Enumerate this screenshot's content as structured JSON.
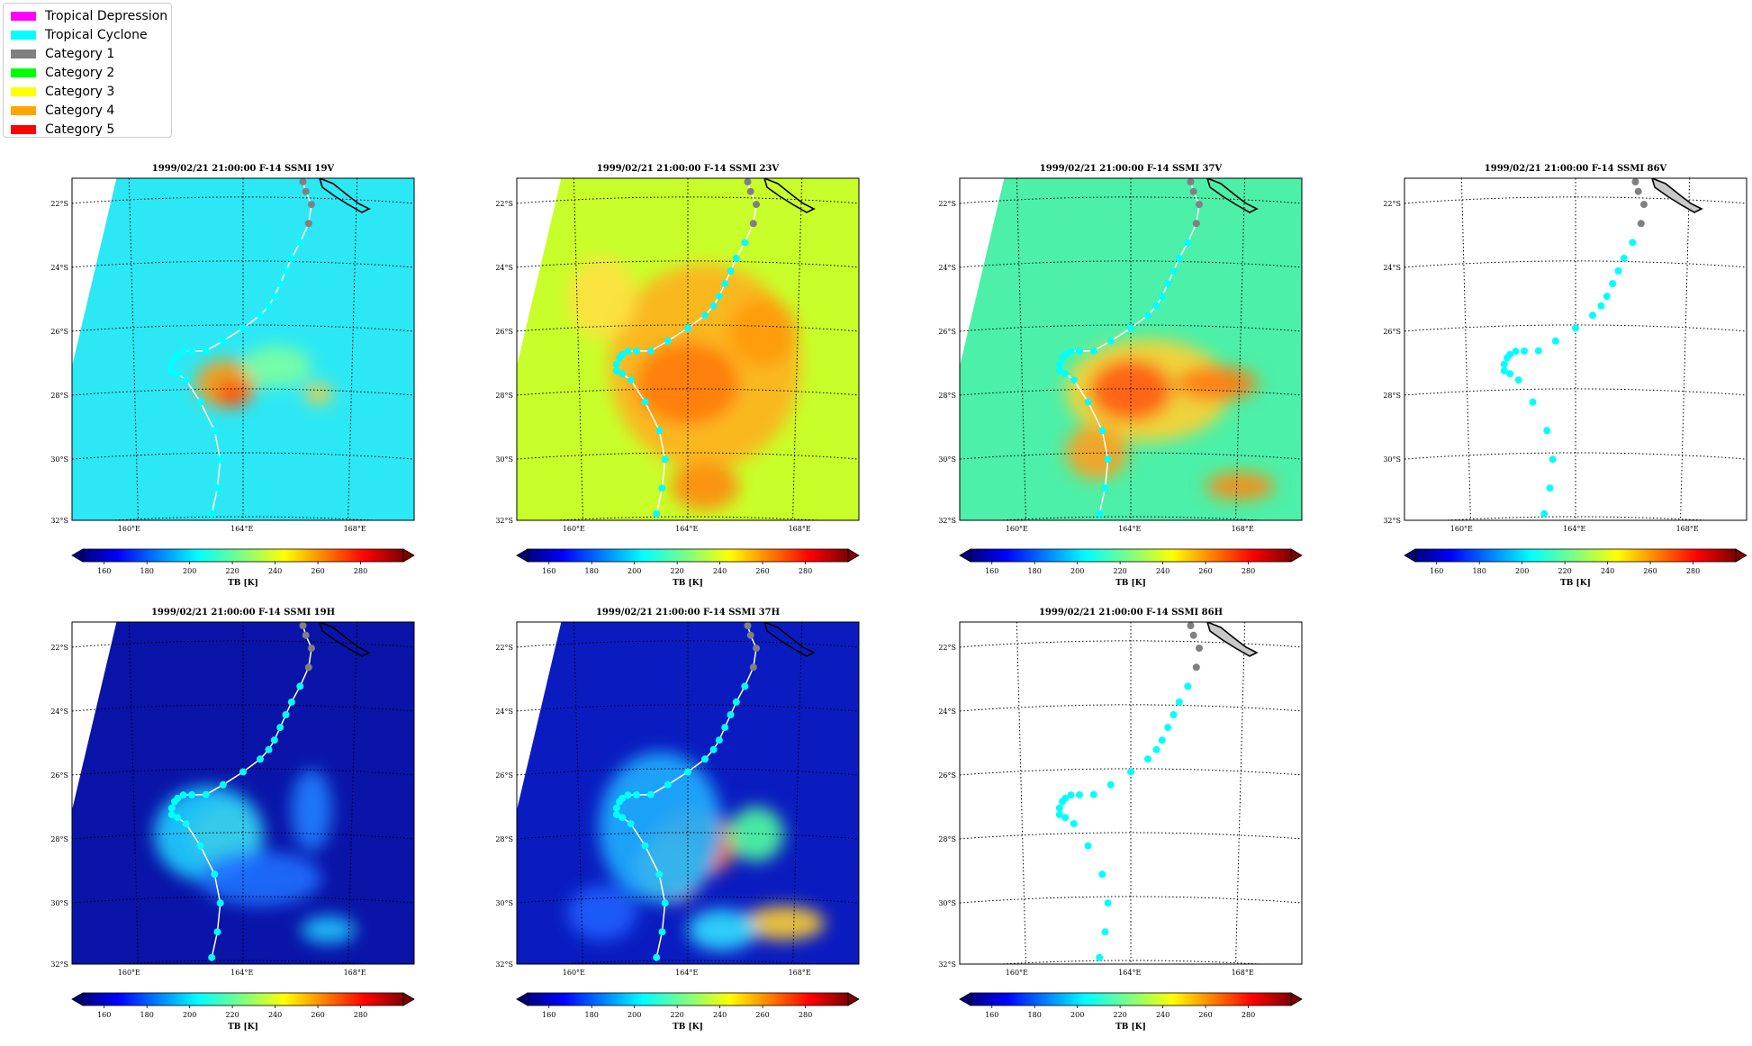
{
  "legend": {
    "items": [
      {
        "label": "Tropical Depression",
        "color": "#ff00ff"
      },
      {
        "label": "Tropical Cyclone",
        "color": "#00ffff"
      },
      {
        "label": "Category 1",
        "color": "#808080"
      },
      {
        "label": "Category 2",
        "color": "#00ff00"
      },
      {
        "label": "Category 3",
        "color": "#ffff00"
      },
      {
        "label": "Category 4",
        "color": "#ffa500"
      },
      {
        "label": "Category 5",
        "color": "#ff0000"
      }
    ]
  },
  "chart_data": [
    {
      "type": "heatmap",
      "title": "1999/02/21 21:00:00  F-14 SSMI 19V",
      "colorbar_label": "TB [K]",
      "channel": "19V",
      "background": "#2ce8f5",
      "swath_missing_left": true,
      "lat_ticks": [
        "22°S",
        "24°S",
        "26°S",
        "28°S",
        "30°S",
        "32°S"
      ],
      "lon_ticks": [
        "160°E",
        "164°E",
        "168°E"
      ],
      "colorbar_ticks": [
        "160",
        "180",
        "200",
        "220",
        "240",
        "260",
        "280"
      ],
      "colorbar_range": [
        150,
        300
      ]
    },
    {
      "type": "heatmap",
      "title": "1999/02/21 21:00:00  F-14 SSMI 23V",
      "colorbar_label": "TB [K]",
      "channel": "23V",
      "background": "#c8ff2a",
      "swath_missing_left": true,
      "lat_ticks": [
        "22°S",
        "24°S",
        "26°S",
        "28°S",
        "30°S",
        "32°S"
      ],
      "lon_ticks": [
        "160°E",
        "164°E",
        "168°E"
      ],
      "colorbar_ticks": [
        "160",
        "180",
        "200",
        "220",
        "240",
        "260",
        "280"
      ],
      "colorbar_range": [
        150,
        300
      ]
    },
    {
      "type": "heatmap",
      "title": "1999/02/21 21:00:00  F-14 SSMI 37V",
      "colorbar_label": "TB [K]",
      "channel": "37V",
      "background": "#4cf0a8",
      "swath_missing_left": true,
      "lat_ticks": [
        "22°S",
        "24°S",
        "26°S",
        "28°S",
        "30°S",
        "32°S"
      ],
      "lon_ticks": [
        "160°E",
        "164°E",
        "168°E"
      ],
      "colorbar_ticks": [
        "160",
        "180",
        "200",
        "220",
        "240",
        "260",
        "280"
      ],
      "colorbar_range": [
        150,
        300
      ]
    },
    {
      "type": "heatmap",
      "title": "1999/02/21 21:00:00  F-14 SSMI 86V",
      "colorbar_label": "TB [K]",
      "channel": "86V",
      "background": "#ffffff",
      "swath_missing_left": false,
      "lat_ticks": [
        "22°S",
        "24°S",
        "26°S",
        "28°S",
        "30°S",
        "32°S"
      ],
      "lon_ticks": [
        "160°E",
        "164°E",
        "168°E"
      ],
      "colorbar_ticks": [
        "160",
        "180",
        "200",
        "220",
        "240",
        "260",
        "280"
      ],
      "colorbar_range": [
        150,
        300
      ]
    },
    {
      "type": "heatmap",
      "title": "1999/02/21 21:00:00  F-14 SSMI 19H",
      "colorbar_label": "TB [K]",
      "channel": "19H",
      "background": "#0a14a8",
      "swath_missing_left": true,
      "lat_ticks": [
        "22°S",
        "24°S",
        "26°S",
        "28°S",
        "30°S",
        "32°S"
      ],
      "lon_ticks": [
        "160°E",
        "164°E",
        "168°E"
      ],
      "colorbar_ticks": [
        "160",
        "180",
        "200",
        "220",
        "240",
        "260",
        "280"
      ],
      "colorbar_range": [
        150,
        300
      ]
    },
    {
      "type": "heatmap",
      "title": "1999/02/21 21:00:00  F-14 SSMI 37H",
      "colorbar_label": "TB [K]",
      "channel": "37H",
      "background": "#0a1cc0",
      "swath_missing_left": true,
      "lat_ticks": [
        "22°S",
        "24°S",
        "26°S",
        "28°S",
        "30°S",
        "32°S"
      ],
      "lon_ticks": [
        "160°E",
        "164°E",
        "168°E"
      ],
      "colorbar_ticks": [
        "160",
        "180",
        "200",
        "220",
        "240",
        "260",
        "280"
      ],
      "colorbar_range": [
        150,
        300
      ]
    },
    {
      "type": "heatmap",
      "title": "1999/02/21 21:00:00  F-14 SSMI 86H",
      "colorbar_label": "TB [K]",
      "channel": "86H",
      "background": "#ffffff",
      "swath_missing_left": false,
      "lat_ticks": [
        "22°S",
        "24°S",
        "26°S",
        "28°S",
        "30°S",
        "32°S"
      ],
      "lon_ticks": [
        "160°E",
        "164°E",
        "168°E"
      ],
      "colorbar_ticks": [
        "160",
        "180",
        "200",
        "220",
        "240",
        "260",
        "280"
      ],
      "colorbar_range": [
        150,
        300
      ]
    }
  ],
  "track": {
    "points": [
      {
        "lon": 166.1,
        "lat": -21.5,
        "cat": "Category 1"
      },
      {
        "lon": 166.2,
        "lat": -21.8,
        "cat": "Category 1"
      },
      {
        "lon": 166.4,
        "lat": -22.2,
        "cat": "Category 1"
      },
      {
        "lon": 166.3,
        "lat": -22.8,
        "cat": "Category 1"
      },
      {
        "lon": 166.0,
        "lat": -23.4,
        "cat": "Tropical Cyclone"
      },
      {
        "lon": 165.7,
        "lat": -23.9,
        "cat": "Tropical Cyclone"
      },
      {
        "lon": 165.5,
        "lat": -24.3,
        "cat": "Tropical Cyclone"
      },
      {
        "lon": 165.3,
        "lat": -24.7,
        "cat": "Tropical Cyclone"
      },
      {
        "lon": 165.1,
        "lat": -25.1,
        "cat": "Tropical Cyclone"
      },
      {
        "lon": 164.9,
        "lat": -25.4,
        "cat": "Tropical Cyclone"
      },
      {
        "lon": 164.6,
        "lat": -25.7,
        "cat": "Tropical Cyclone"
      },
      {
        "lon": 164.0,
        "lat": -26.1,
        "cat": "Tropical Cyclone"
      },
      {
        "lon": 163.3,
        "lat": -26.5,
        "cat": "Tropical Cyclone"
      },
      {
        "lon": 162.7,
        "lat": -26.8,
        "cat": "Tropical Cyclone"
      },
      {
        "lon": 162.2,
        "lat": -26.8,
        "cat": "Tropical Cyclone"
      },
      {
        "lon": 161.9,
        "lat": -26.8,
        "cat": "Tropical Cyclone"
      },
      {
        "lon": 161.7,
        "lat": -26.9,
        "cat": "Tropical Cyclone"
      },
      {
        "lon": 161.6,
        "lat": -27.0,
        "cat": "Tropical Cyclone"
      },
      {
        "lon": 161.5,
        "lat": -27.2,
        "cat": "Tropical Cyclone"
      },
      {
        "lon": 161.5,
        "lat": -27.4,
        "cat": "Tropical Cyclone"
      },
      {
        "lon": 161.7,
        "lat": -27.5,
        "cat": "Tropical Cyclone"
      },
      {
        "lon": 162.0,
        "lat": -27.7,
        "cat": "Tropical Cyclone"
      },
      {
        "lon": 162.5,
        "lat": -28.4,
        "cat": "Tropical Cyclone"
      },
      {
        "lon": 163.0,
        "lat": -29.3,
        "cat": "Tropical Cyclone"
      },
      {
        "lon": 163.2,
        "lat": -30.2,
        "cat": "Tropical Cyclone"
      },
      {
        "lon": 163.1,
        "lat": -31.1,
        "cat": "Tropical Cyclone"
      },
      {
        "lon": 162.9,
        "lat": -31.9,
        "cat": "Tropical Cyclone"
      }
    ]
  }
}
